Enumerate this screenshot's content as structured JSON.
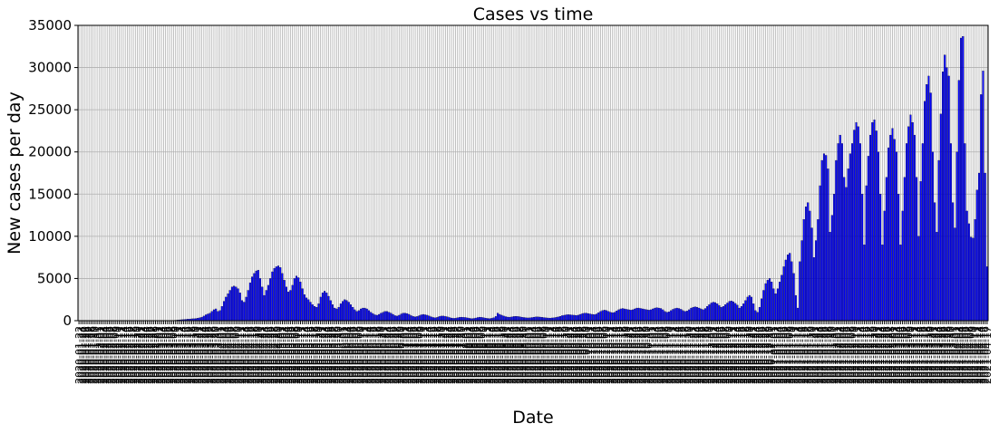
{
  "chart_data": {
    "type": "bar",
    "title": "Cases vs time",
    "xlabel": "Date",
    "ylabel": "New cases per day",
    "ylim": [
      0,
      35000
    ],
    "yticks": [
      0,
      5000,
      10000,
      15000,
      20000,
      25000,
      30000,
      35000
    ],
    "grid": true,
    "legend": "none",
    "bar_color": "#0000ff",
    "x_start_date": "2020-01-22",
    "n_days": 456,
    "values": [
      0,
      0,
      0,
      0,
      0,
      0,
      0,
      0,
      0,
      0,
      0,
      0,
      0,
      0,
      0,
      0,
      0,
      0,
      0,
      0,
      0,
      0,
      0,
      0,
      0,
      0,
      0,
      0,
      0,
      0,
      0,
      0,
      0,
      0,
      0,
      0,
      0,
      0,
      0,
      0,
      0,
      0,
      0,
      0,
      5,
      10,
      20,
      35,
      55,
      80,
      100,
      120,
      150,
      160,
      180,
      200,
      220,
      230,
      260,
      300,
      350,
      420,
      550,
      700,
      800,
      900,
      1100,
      1300,
      1400,
      1100,
      1200,
      1700,
      2300,
      2800,
      3200,
      3600,
      4000,
      4100,
      4000,
      3800,
      3300,
      2400,
      2200,
      2800,
      3600,
      4500,
      5200,
      5600,
      5900,
      6000,
      5000,
      4000,
      3000,
      3600,
      4200,
      5000,
      5800,
      6200,
      6400,
      6500,
      6300,
      5600,
      4800,
      4000,
      3400,
      3600,
      4200,
      5000,
      5300,
      5100,
      4600,
      3800,
      3100,
      2700,
      2500,
      2200,
      1900,
      1700,
      1600,
      2000,
      2800,
      3300,
      3500,
      3300,
      2900,
      2400,
      1900,
      1500,
      1400,
      1600,
      2000,
      2300,
      2500,
      2400,
      2200,
      1900,
      1600,
      1300,
      1100,
      1200,
      1400,
      1500,
      1500,
      1400,
      1200,
      1000,
      850,
      700,
      650,
      750,
      900,
      1000,
      1100,
      1100,
      1000,
      900,
      750,
      600,
      550,
      650,
      800,
      900,
      900,
      850,
      750,
      600,
      500,
      450,
      500,
      600,
      700,
      750,
      700,
      650,
      550,
      450,
      380,
      350,
      400,
      500,
      550,
      550,
      500,
      450,
      380,
      320,
      280,
      300,
      350,
      400,
      420,
      400,
      380,
      330,
      280,
      250,
      270,
      320,
      380,
      420,
      400,
      360,
      310,
      270,
      250,
      290,
      360,
      500,
      900,
      750,
      650,
      550,
      480,
      430,
      420,
      450,
      500,
      520,
      500,
      470,
      420,
      380,
      350,
      330,
      350,
      380,
      420,
      450,
      450,
      430,
      400,
      370,
      340,
      320,
      310,
      330,
      360,
      400,
      450,
      520,
      600,
      650,
      700,
      720,
      700,
      680,
      650,
      620,
      660,
      750,
      850,
      900,
      900,
      850,
      800,
      750,
      720,
      800,
      950,
      1100,
      1200,
      1250,
      1200,
      1100,
      1000,
      950,
      1000,
      1150,
      1300,
      1400,
      1450,
      1400,
      1350,
      1300,
      1250,
      1300,
      1400,
      1500,
      1500,
      1450,
      1400,
      1350,
      1300,
      1250,
      1300,
      1400,
      1500,
      1550,
      1500,
      1450,
      1300,
      1100,
      1000,
      1050,
      1200,
      1350,
      1450,
      1500,
      1450,
      1350,
      1200,
      1100,
      1150,
      1300,
      1500,
      1600,
      1650,
      1600,
      1500,
      1400,
      1300,
      1450,
      1700,
      1900,
      2100,
      2200,
      2150,
      2000,
      1800,
      1600,
      1700,
      1900,
      2100,
      2300,
      2350,
      2250,
      2050,
      1850,
      1500,
      1700,
      2000,
      2400,
      2800,
      3000,
      2800,
      2000,
      1200,
      1000,
      1600,
      2600,
      3600,
      4400,
      4800,
      5000,
      4600,
      3800,
      3200,
      3800,
      4600,
      5400,
      6400,
      7200,
      7800,
      8000,
      7000,
      5600,
      3000,
      1500,
      7000,
      9500,
      12000,
      13500,
      14000,
      13000,
      11000,
      7500,
      9500,
      12000,
      16000,
      19000,
      19800,
      19600,
      18000,
      10500,
      12500,
      15000,
      19000,
      21000,
      22000,
      21000,
      17000,
      15800,
      18000,
      19800,
      21000,
      22600,
      23500,
      23000,
      21000,
      15000,
      9000,
      16000,
      19500,
      22000,
      23500,
      23800,
      22500,
      20000,
      15000,
      9000,
      13000,
      17000,
      20500,
      22000,
      22800,
      21500,
      20000,
      15000,
      9000,
      13000,
      17000,
      21000,
      23000,
      24400,
      23500,
      22000,
      17000,
      10000,
      16500,
      21000,
      26000,
      28000,
      29000,
      27000,
      20000,
      14000,
      10500,
      19000,
      24500,
      29500,
      31500,
      30000,
      29000,
      21000,
      14000,
      11000,
      20000,
      28500,
      33500,
      33700,
      21000,
      13000,
      11500,
      9900,
      9800,
      12000,
      15500,
      17500,
      26800,
      29600,
      17500,
      6400
    ]
  }
}
